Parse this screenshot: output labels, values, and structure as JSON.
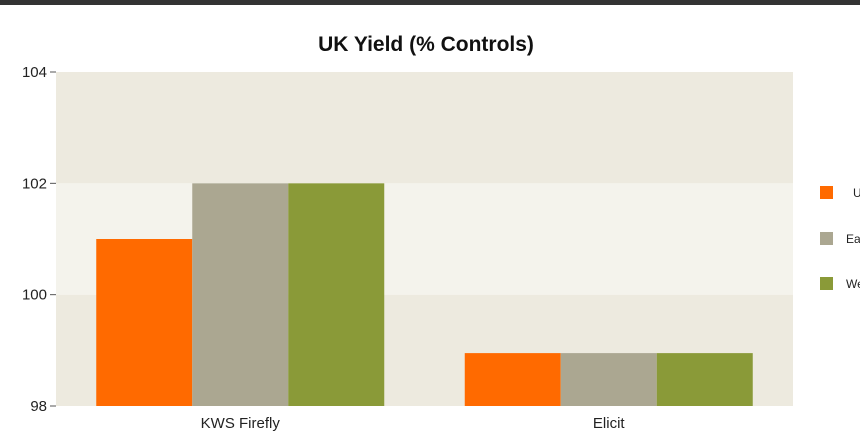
{
  "chart_data": {
    "type": "bar",
    "title": "UK Yield (% Controls)",
    "categories": [
      "KWS Firefly",
      "Elicit"
    ],
    "series": [
      {
        "name": "U",
        "color": "#ff6a00",
        "values": [
          101.0,
          98.95
        ]
      },
      {
        "name": "Ea",
        "color": "#aba791",
        "values": [
          102.0,
          98.95
        ]
      },
      {
        "name": "We",
        "color": "#8a9a38",
        "values": [
          102.0,
          98.95
        ]
      }
    ],
    "ylim": [
      98,
      104
    ],
    "yticks": [
      98,
      100,
      102,
      104
    ],
    "xlabel": "",
    "ylabel": "",
    "grid": "alternating horizontal bands",
    "legend": "right",
    "band_colors": [
      "#edeadf",
      "#f4f3ec"
    ]
  }
}
